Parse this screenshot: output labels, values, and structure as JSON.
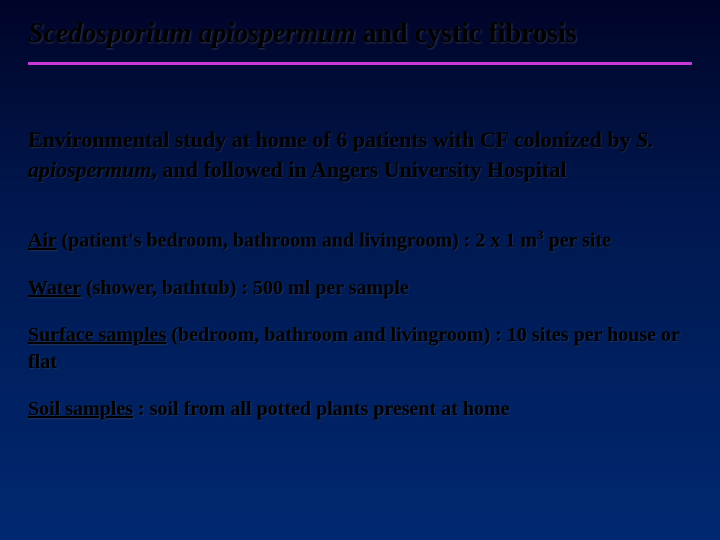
{
  "title": {
    "italic_part": "Scedosporium apiospermum",
    "rest": " and cystic fibrosis"
  },
  "intro": {
    "before_italic": "Environmental study at home of 6 patients with CF colonized by ",
    "italic_part": "S. apiospermum",
    "after_italic": ", and followed in Angers University Hospital"
  },
  "items": {
    "air": {
      "label": "Air",
      "text_before_sup": " (patient's bedroom, bathroom and livingroom) : 2 x 1 m",
      "sup": "3",
      "text_after_sup": " per site"
    },
    "water": {
      "label": "Water",
      "text": " (shower, bathtub) : 500 ml per sample"
    },
    "surface": {
      "label": "Surface samples",
      "text": " (bedroom, bathroom and livingroom) : 10 sites per house or flat"
    },
    "soil": {
      "label": "Soil samples",
      "text": " : soil from all potted plants present at home"
    }
  },
  "colors": {
    "divider": "#c838d8",
    "text": "#000000",
    "bg_top": "#000428",
    "bg_bottom": "#002870"
  }
}
